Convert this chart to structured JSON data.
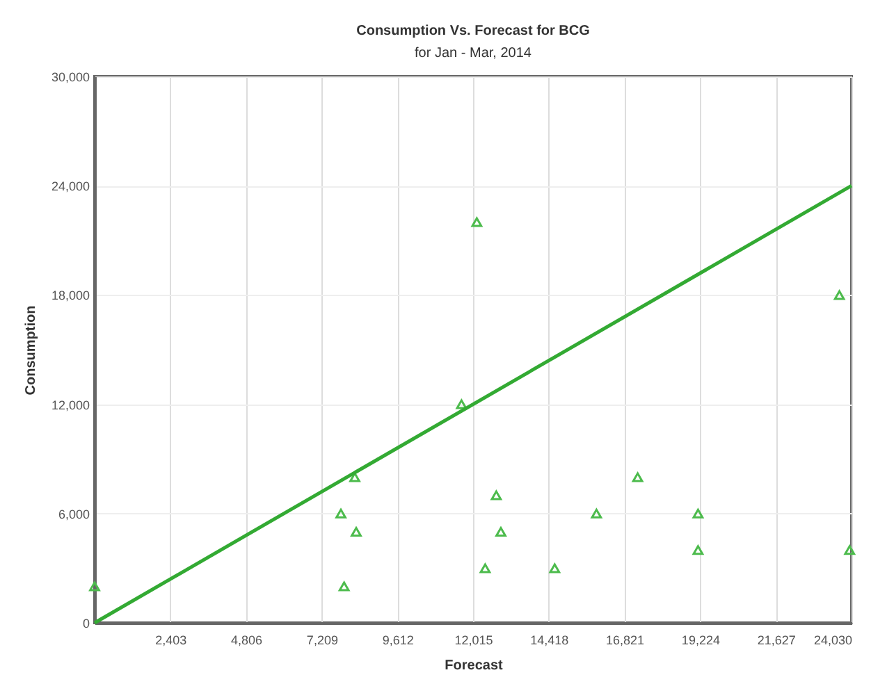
{
  "chart_data": {
    "type": "scatter",
    "title": "Consumption Vs. Forecast for BCG",
    "subtitle": "for Jan - Mar, 2014",
    "xlabel": "Forecast",
    "ylabel": "Consumption",
    "xlim": [
      0,
      24030
    ],
    "ylim": [
      0,
      30000
    ],
    "xticks": [
      {
        "value": 0,
        "label": null
      },
      {
        "value": 2403,
        "label": "2,403"
      },
      {
        "value": 4806,
        "label": "4,806"
      },
      {
        "value": 7209,
        "label": "7,209"
      },
      {
        "value": 9612,
        "label": "9,612"
      },
      {
        "value": 12015,
        "label": "12,015"
      },
      {
        "value": 14418,
        "label": "14,418"
      },
      {
        "value": 16821,
        "label": "16,821"
      },
      {
        "value": 19224,
        "label": "19,224"
      },
      {
        "value": 21627,
        "label": "21,627"
      },
      {
        "value": 24030,
        "label": "24,030"
      }
    ],
    "yticks": [
      0,
      {
        "value": 6000,
        "label": "6,000"
      },
      {
        "value": 12000,
        "label": "12,000"
      },
      {
        "value": 18000,
        "label": "18,000"
      },
      {
        "value": 24000,
        "label": "24,000"
      },
      {
        "value": 30000,
        "label": "30,000"
      }
    ],
    "grid": true,
    "series": [
      {
        "marker": "triangle",
        "color": "#4cbb4c",
        "x": [
          0,
          7819,
          7921,
          8305,
          8260,
          12134,
          11648,
          12752,
          12898,
          12399,
          14607,
          15933,
          17241,
          19157,
          19157,
          23645,
          23970
        ],
        "values": [
          2000,
          6000,
          2000,
          5000,
          8000,
          22000,
          12000,
          7000,
          5000,
          3000,
          3000,
          6000,
          8000,
          6000,
          4000,
          18000,
          4000
        ]
      },
      {
        "type": "line",
        "marker": "none",
        "color": "#33aa33",
        "x": [
          0,
          24030
        ],
        "values": [
          0,
          24000
        ]
      }
    ]
  }
}
